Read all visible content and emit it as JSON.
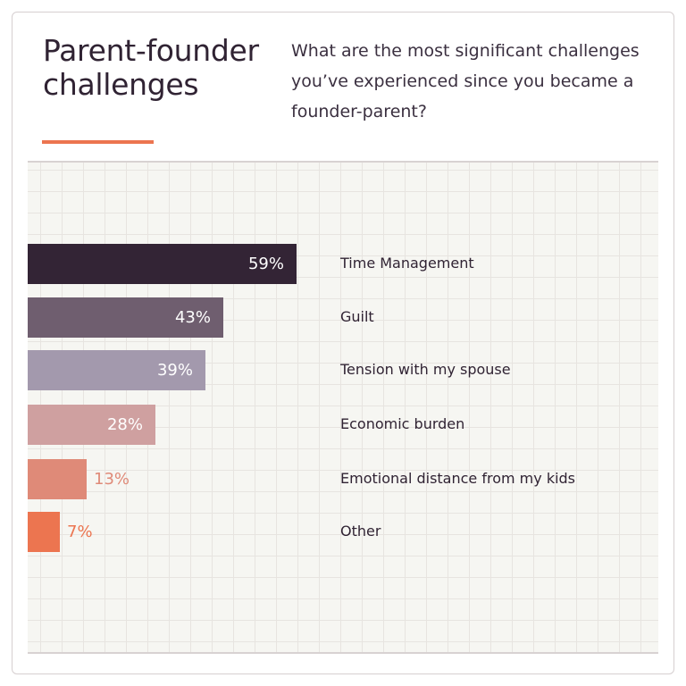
{
  "header": {
    "title_line1": "Parent-founder",
    "title_line2": "challenges",
    "question": "What are the most significant challenges you’ve experienced since you became a founder-parent?"
  },
  "colors": {
    "accent": "#ec7550",
    "title": "#302333",
    "grid_bg": "#f6f6f2"
  },
  "chart_data": {
    "type": "bar",
    "orientation": "horizontal",
    "title": "Parent-founder challenges",
    "subtitle": "What are the most significant challenges you’ve experienced since you became a founder-parent?",
    "categories": [
      "Time Management",
      "Guilt",
      "Tension with my spouse",
      "Economic burden",
      "Emotional distance from my kids",
      "Other"
    ],
    "values": [
      59,
      43,
      39,
      28,
      13,
      7
    ],
    "value_labels": [
      "59%",
      "43%",
      "39%",
      "28%",
      "13%",
      "7%"
    ],
    "bar_colors": [
      "#332435",
      "#6f5e6f",
      "#a399ad",
      "#cfa0a0",
      "#df8a78",
      "#ec7550"
    ],
    "xlabel": "",
    "ylabel": "",
    "grid": true,
    "legend": "none"
  }
}
